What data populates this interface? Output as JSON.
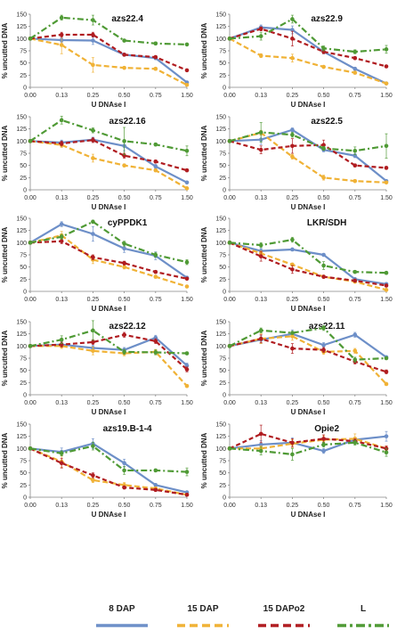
{
  "colors": {
    "8 DAP": "#6d8fc8",
    "15 DAP": "#f0b236",
    "15 DAPo2": "#b01c20",
    "L": "#4f9a35"
  },
  "legend": {
    "items": [
      {
        "name": "8 DAP",
        "color": "#6d8fc8",
        "dash": "solid"
      },
      {
        "name": "15 DAP",
        "color": "#f0b236",
        "dash": "dashed"
      },
      {
        "name": "15 DAPo2",
        "color": "#b01c20",
        "dash": "dashed"
      },
      {
        "name": "L",
        "color": "#4f9a35",
        "dash": "dash-dot"
      }
    ]
  },
  "chart_data": [
    {
      "type": "line",
      "title": "azs22.4",
      "xlabel": "U DNAse I",
      "ylabel": "% uncutted DNA",
      "categories": [
        "0.00",
        "0.13",
        "0.25",
        "0.50",
        "0.75",
        "1.50"
      ],
      "ylim": [
        0,
        150
      ],
      "yticks": [
        0,
        25,
        50,
        75,
        100,
        125,
        150
      ],
      "series": [
        {
          "name": "8 DAP",
          "values": [
            100,
            97,
            96,
            67,
            60,
            10
          ],
          "err": [
            3,
            5,
            8,
            3,
            3,
            2
          ]
        },
        {
          "name": "15 DAP",
          "values": [
            100,
            87,
            46,
            40,
            38,
            5
          ],
          "err": [
            3,
            18,
            15,
            3,
            3,
            2
          ]
        },
        {
          "name": "15 DAPo2",
          "values": [
            100,
            108,
            108,
            67,
            62,
            35
          ],
          "err": [
            3,
            5,
            5,
            3,
            3,
            2
          ]
        },
        {
          "name": "L",
          "values": [
            100,
            143,
            138,
            96,
            90,
            88
          ],
          "err": [
            3,
            5,
            10,
            3,
            3,
            2
          ]
        }
      ]
    },
    {
      "type": "line",
      "title": "azs22.9",
      "xlabel": "U DNAse I",
      "ylabel": "% uncutted DNA",
      "categories": [
        "0.00",
        "0.13",
        "0.25",
        "0.50",
        "0.75",
        "1.50"
      ],
      "ylim": [
        0,
        150
      ],
      "yticks": [
        0,
        25,
        50,
        75,
        100,
        125,
        150
      ],
      "series": [
        {
          "name": "8 DAP",
          "values": [
            100,
            123,
            118,
            73,
            38,
            8
          ],
          "err": [
            3,
            5,
            8,
            4,
            3,
            2
          ]
        },
        {
          "name": "15 DAP",
          "values": [
            100,
            65,
            60,
            42,
            30,
            8
          ],
          "err": [
            3,
            4,
            8,
            3,
            3,
            2
          ]
        },
        {
          "name": "15 DAPo2",
          "values": [
            100,
            120,
            100,
            73,
            60,
            43
          ],
          "err": [
            3,
            4,
            15,
            4,
            3,
            2
          ]
        },
        {
          "name": "L",
          "values": [
            100,
            105,
            140,
            80,
            73,
            78
          ],
          "err": [
            3,
            8,
            8,
            5,
            4,
            8
          ]
        }
      ]
    },
    {
      "type": "line",
      "title": "azs22.16",
      "xlabel": "U DNAse I",
      "ylabel": "% uncutted DNA",
      "categories": [
        "0.00",
        "0.13",
        "0.25",
        "0.50",
        "0.75",
        "1.50"
      ],
      "ylim": [
        0,
        150
      ],
      "yticks": [
        0,
        25,
        50,
        75,
        100,
        125,
        150
      ],
      "series": [
        {
          "name": "8 DAP",
          "values": [
            100,
            97,
            103,
            90,
            48,
            15
          ],
          "err": [
            3,
            5,
            5,
            10,
            4,
            2
          ]
        },
        {
          "name": "15 DAP",
          "values": [
            100,
            92,
            65,
            50,
            40,
            3
          ],
          "err": [
            3,
            5,
            8,
            3,
            3,
            2
          ]
        },
        {
          "name": "15 DAPo2",
          "values": [
            100,
            95,
            102,
            70,
            58,
            40
          ],
          "err": [
            3,
            5,
            5,
            5,
            3,
            3
          ]
        },
        {
          "name": "L",
          "values": [
            100,
            143,
            122,
            100,
            93,
            80
          ],
          "err": [
            3,
            8,
            5,
            28,
            3,
            10
          ]
        }
      ]
    },
    {
      "type": "line",
      "title": "azs22.5",
      "xlabel": "U DNAse I",
      "ylabel": "% uncutted DNA",
      "categories": [
        "0.00",
        "0.13",
        "0.25",
        "0.50",
        "0.75",
        "1.50"
      ],
      "ylim": [
        0,
        150
      ],
      "yticks": [
        0,
        25,
        50,
        75,
        100,
        125,
        150
      ],
      "series": [
        {
          "name": "8 DAP",
          "values": [
            100,
            103,
            123,
            82,
            70,
            18
          ],
          "err": [
            3,
            10,
            4,
            4,
            4,
            2
          ]
        },
        {
          "name": "15 DAP",
          "values": [
            100,
            117,
            68,
            25,
            18,
            15
          ],
          "err": [
            3,
            5,
            5,
            5,
            3,
            2
          ]
        },
        {
          "name": "15 DAPo2",
          "values": [
            100,
            82,
            90,
            92,
            50,
            45
          ],
          "err": [
            3,
            8,
            15,
            10,
            3,
            3
          ]
        },
        {
          "name": "L",
          "values": [
            100,
            118,
            113,
            85,
            80,
            90
          ],
          "err": [
            3,
            20,
            5,
            4,
            8,
            25
          ]
        }
      ]
    },
    {
      "type": "line",
      "title": "cyPPDK1",
      "xlabel": "U DNAse I",
      "ylabel": "% uncutted DNA",
      "categories": [
        "0.00",
        "0.13",
        "0.25",
        "0.50",
        "0.75",
        "1.50"
      ],
      "ylim": [
        0,
        150
      ],
      "yticks": [
        0,
        25,
        50,
        75,
        100,
        125,
        150
      ],
      "series": [
        {
          "name": "8 DAP",
          "values": [
            100,
            138,
            118,
            88,
            73,
            28
          ],
          "err": [
            3,
            5,
            15,
            8,
            8,
            3
          ]
        },
        {
          "name": "15 DAP",
          "values": [
            100,
            115,
            65,
            50,
            30,
            10
          ],
          "err": [
            3,
            8,
            8,
            4,
            3,
            2
          ]
        },
        {
          "name": "15 DAPo2",
          "values": [
            100,
            103,
            70,
            58,
            40,
            26
          ],
          "err": [
            3,
            5,
            5,
            4,
            3,
            2
          ]
        },
        {
          "name": "L",
          "values": [
            100,
            112,
            143,
            98,
            75,
            60
          ],
          "err": [
            3,
            5,
            3,
            5,
            5,
            5
          ]
        }
      ]
    },
    {
      "type": "line",
      "title": "LKR/SDH",
      "xlabel": "U DNAse I",
      "ylabel": "% uncutted DNA",
      "categories": [
        "0.00",
        "0.13",
        "0.25",
        "0.50",
        "0.75",
        "1.50"
      ],
      "ylim": [
        0,
        150
      ],
      "yticks": [
        0,
        25,
        50,
        75,
        100,
        125,
        150
      ],
      "series": [
        {
          "name": "8 DAP",
          "values": [
            100,
            83,
            86,
            75,
            25,
            15
          ],
          "err": [
            3,
            5,
            3,
            3,
            3,
            2
          ]
        },
        {
          "name": "15 DAP",
          "values": [
            100,
            78,
            55,
            30,
            20,
            3
          ],
          "err": [
            3,
            5,
            3,
            3,
            3,
            2
          ]
        },
        {
          "name": "15 DAPo2",
          "values": [
            100,
            72,
            45,
            30,
            22,
            12
          ],
          "err": [
            3,
            10,
            8,
            3,
            3,
            2
          ]
        },
        {
          "name": "L",
          "values": [
            100,
            95,
            106,
            53,
            40,
            38
          ],
          "err": [
            3,
            5,
            5,
            8,
            3,
            3
          ]
        }
      ]
    },
    {
      "type": "line",
      "title": "azs22.12",
      "xlabel": "U DNAse I",
      "ylabel": "% uncutted DNA",
      "categories": [
        "0.00",
        "0.13",
        "0.25",
        "0.50",
        "0.75",
        "1.50"
      ],
      "ylim": [
        0,
        150
      ],
      "yticks": [
        0,
        25,
        50,
        75,
        100,
        125,
        150
      ],
      "series": [
        {
          "name": "8 DAP",
          "values": [
            100,
            103,
            96,
            92,
            117,
            60
          ],
          "err": [
            3,
            5,
            5,
            5,
            5,
            5
          ]
        },
        {
          "name": "15 DAP",
          "values": [
            100,
            100,
            90,
            85,
            88,
            18
          ],
          "err": [
            3,
            5,
            8,
            5,
            5,
            3
          ]
        },
        {
          "name": "15 DAPo2",
          "values": [
            100,
            103,
            108,
            123,
            110,
            52
          ],
          "err": [
            3,
            5,
            5,
            5,
            5,
            5
          ]
        },
        {
          "name": "L",
          "values": [
            100,
            113,
            132,
            88,
            87,
            85
          ],
          "err": [
            3,
            8,
            20,
            5,
            5,
            3
          ]
        }
      ]
    },
    {
      "type": "line",
      "title": "azs22.11",
      "xlabel": "U DNAse I",
      "ylabel": "% uncutted DNA",
      "categories": [
        "0.00",
        "0.13",
        "0.25",
        "0.50",
        "0.75",
        "1.50"
      ],
      "ylim": [
        0,
        150
      ],
      "yticks": [
        0,
        25,
        50,
        75,
        100,
        125,
        150
      ],
      "series": [
        {
          "name": "8 DAP",
          "values": [
            100,
            113,
            125,
            102,
            123,
            77
          ],
          "err": [
            3,
            8,
            8,
            5,
            5,
            3
          ]
        },
        {
          "name": "15 DAP",
          "values": [
            100,
            115,
            120,
            88,
            90,
            22
          ],
          "err": [
            3,
            10,
            8,
            5,
            5,
            3
          ]
        },
        {
          "name": "15 DAPo2",
          "values": [
            100,
            115,
            95,
            92,
            68,
            47
          ],
          "err": [
            3,
            8,
            10,
            5,
            5,
            4
          ]
        },
        {
          "name": "L",
          "values": [
            100,
            132,
            127,
            137,
            72,
            75
          ],
          "err": [
            3,
            5,
            3,
            5,
            5,
            3
          ]
        }
      ]
    },
    {
      "type": "line",
      "title": "azs19.B-1-4",
      "xlabel": "U DNAse I",
      "ylabel": "% uncutted DNA",
      "categories": [
        "0.00",
        "0.13",
        "0.25",
        "0.50",
        "0.75",
        "1.50"
      ],
      "ylim": [
        0,
        150
      ],
      "yticks": [
        0,
        25,
        50,
        75,
        100,
        125,
        150
      ],
      "series": [
        {
          "name": "8 DAP",
          "values": [
            100,
            93,
            110,
            70,
            25,
            10
          ],
          "err": [
            3,
            8,
            10,
            8,
            3,
            2
          ]
        },
        {
          "name": "15 DAP",
          "values": [
            100,
            73,
            35,
            25,
            18,
            5
          ],
          "err": [
            3,
            12,
            5,
            5,
            3,
            2
          ]
        },
        {
          "name": "15 DAPo2",
          "values": [
            100,
            70,
            45,
            20,
            15,
            5
          ],
          "err": [
            3,
            10,
            5,
            3,
            3,
            2
          ]
        },
        {
          "name": "L",
          "values": [
            100,
            90,
            105,
            55,
            55,
            52
          ],
          "err": [
            3,
            5,
            8,
            8,
            3,
            8
          ]
        }
      ]
    },
    {
      "type": "line",
      "title": "Opie2",
      "xlabel": "U DNAse I",
      "ylabel": "% uncutted DNA",
      "categories": [
        "0.00",
        "0.13",
        "0.25",
        "0.50",
        "0.75",
        "1.50"
      ],
      "ylim": [
        0,
        150
      ],
      "yticks": [
        0,
        25,
        50,
        75,
        100,
        125,
        150
      ],
      "series": [
        {
          "name": "8 DAP",
          "values": [
            100,
            108,
            112,
            95,
            118,
            125
          ],
          "err": [
            3,
            8,
            10,
            5,
            5,
            10
          ]
        },
        {
          "name": "15 DAP",
          "values": [
            100,
            100,
            110,
            118,
            120,
            100
          ],
          "err": [
            3,
            5,
            8,
            8,
            10,
            5
          ]
        },
        {
          "name": "15 DAPo2",
          "values": [
            100,
            130,
            112,
            120,
            115,
            100
          ],
          "err": [
            3,
            18,
            8,
            8,
            5,
            5
          ]
        },
        {
          "name": "L",
          "values": [
            100,
            95,
            88,
            108,
            112,
            92
          ],
          "err": [
            3,
            8,
            12,
            5,
            5,
            8
          ]
        }
      ]
    }
  ]
}
